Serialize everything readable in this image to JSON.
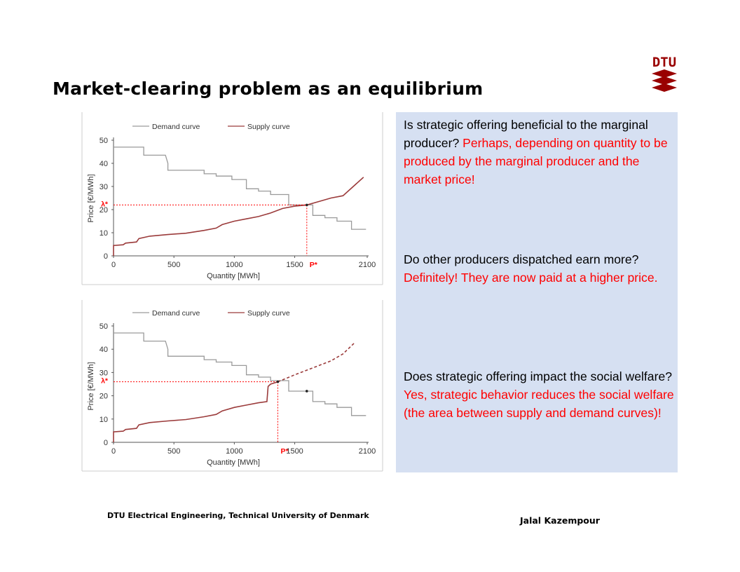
{
  "slide": {
    "title": "Market-clearing problem as an equilibrium",
    "logo_text": "DTU",
    "footer_left": "DTU Electrical Engineering, Technical University of Denmark",
    "footer_right": "Jalal Kazempour"
  },
  "colors": {
    "demand": "#9a9a9a",
    "supply": "#9b3b3b",
    "marker": "#ff0000",
    "panel_bg": "#d6e0f2",
    "logo": "#990000"
  },
  "panel": {
    "items": [
      {
        "question": "Is strategic offering beneficial to the marginal producer?",
        "answer": "Perhaps, depending on quantity to be produced by the marginal producer and the market price!"
      },
      {
        "question": "Do other producers dispatched earn more?",
        "answer": "Definitely! They are now paid at a higher price."
      },
      {
        "question": "Does strategic offering impact the social welfare?",
        "answer": "Yes, strategic behavior reduces the social welfare (the area between supply and demand curves)!"
      }
    ]
  },
  "chart_data": [
    {
      "type": "line",
      "xlabel": "Quantity [MWh]",
      "ylabel": "Price [€/MWh]",
      "xlim": [
        0,
        2100
      ],
      "ylim": [
        0,
        50
      ],
      "xticks": [
        "0",
        "500",
        "1000",
        "1500",
        "2100"
      ],
      "yticks": [
        "0",
        "10",
        "20",
        "30",
        "40",
        "50"
      ],
      "legend": [
        "Demand curve",
        "Supply curve"
      ],
      "legend_position": "top",
      "marker_labels": {
        "price": "λ*",
        "quantity": "P*"
      },
      "clearing": {
        "x": 1600,
        "y": 22
      },
      "series": [
        {
          "name": "Demand curve",
          "style": "step",
          "x": [
            0,
            250,
            250,
            430,
            450,
            450,
            750,
            750,
            850,
            850,
            980,
            980,
            1100,
            1100,
            1200,
            1200,
            1300,
            1300,
            1450,
            1450,
            1600,
            1650,
            1650,
            1750,
            1750,
            1850,
            1850,
            1970,
            1970,
            2090
          ],
          "y": [
            47,
            47,
            43.5,
            43.5,
            40,
            37,
            37,
            35.5,
            35.5,
            34.5,
            34.5,
            33,
            33,
            29,
            29,
            28,
            28,
            26.5,
            26.5,
            22,
            22,
            22,
            17.5,
            17.5,
            16.5,
            16.5,
            15,
            15,
            11.5,
            11.5
          ]
        },
        {
          "name": "Supply curve",
          "style": "solid",
          "x": [
            0,
            0,
            80,
            100,
            190,
            210,
            300,
            450,
            600,
            750,
            850,
            900,
            1000,
            1100,
            1200,
            1300,
            1400,
            1500,
            1600,
            1700,
            1800,
            1900,
            2070
          ],
          "y": [
            0,
            4.5,
            4.8,
            5.5,
            6.0,
            7.5,
            8.5,
            9.2,
            9.8,
            11.0,
            12.0,
            13.5,
            15.0,
            16.0,
            17.0,
            18.5,
            20.5,
            21.5,
            22,
            23.5,
            25.0,
            26.0,
            34.0
          ]
        }
      ]
    },
    {
      "type": "line",
      "xlabel": "Quantity [MWh]",
      "ylabel": "Price [€/MWh]",
      "xlim": [
        0,
        2100
      ],
      "ylim": [
        0,
        50
      ],
      "xticks": [
        "0",
        "500",
        "1000",
        "1500",
        "2100"
      ],
      "yticks": [
        "0",
        "10",
        "20",
        "30",
        "40",
        "50"
      ],
      "legend": [
        "Demand curve",
        "Supply curve"
      ],
      "legend_position": "top",
      "marker_labels": {
        "price": "λ*",
        "quantity": "P*"
      },
      "clearing": {
        "x": 1360,
        "y": 26
      },
      "old_clearing": {
        "x": 1600,
        "y": 22
      },
      "series": [
        {
          "name": "Demand curve",
          "style": "step",
          "x": [
            0,
            250,
            250,
            430,
            450,
            450,
            750,
            750,
            850,
            850,
            980,
            980,
            1100,
            1100,
            1200,
            1200,
            1300,
            1300,
            1450,
            1450,
            1600,
            1650,
            1650,
            1750,
            1750,
            1850,
            1850,
            1970,
            1970,
            2090
          ],
          "y": [
            47,
            47,
            43.5,
            43.5,
            40,
            37,
            37,
            35.5,
            35.5,
            34.5,
            34.5,
            33,
            33,
            29,
            29,
            28,
            28,
            26.5,
            26.5,
            22,
            22,
            22,
            17.5,
            17.5,
            16.5,
            16.5,
            15,
            15,
            11.5,
            11.5
          ]
        },
        {
          "name": "Supply curve",
          "style": "solid",
          "x": [
            0,
            0,
            80,
            100,
            190,
            210,
            300,
            450,
            600,
            750,
            850,
            900,
            1000,
            1100,
            1200,
            1270,
            1280,
            1300,
            1360
          ],
          "y": [
            0,
            4.5,
            4.8,
            5.5,
            6.0,
            7.5,
            8.5,
            9.2,
            9.8,
            11.0,
            12.0,
            13.5,
            15.0,
            16.0,
            17.0,
            17.5,
            24.0,
            25.0,
            26.0
          ]
        },
        {
          "name": "Supply curve",
          "style": "dashed",
          "x": [
            1360,
            1500,
            1650,
            1800,
            1900,
            2000
          ],
          "y": [
            26.0,
            29.0,
            32.0,
            35.0,
            38.0,
            43.0
          ]
        }
      ]
    }
  ]
}
